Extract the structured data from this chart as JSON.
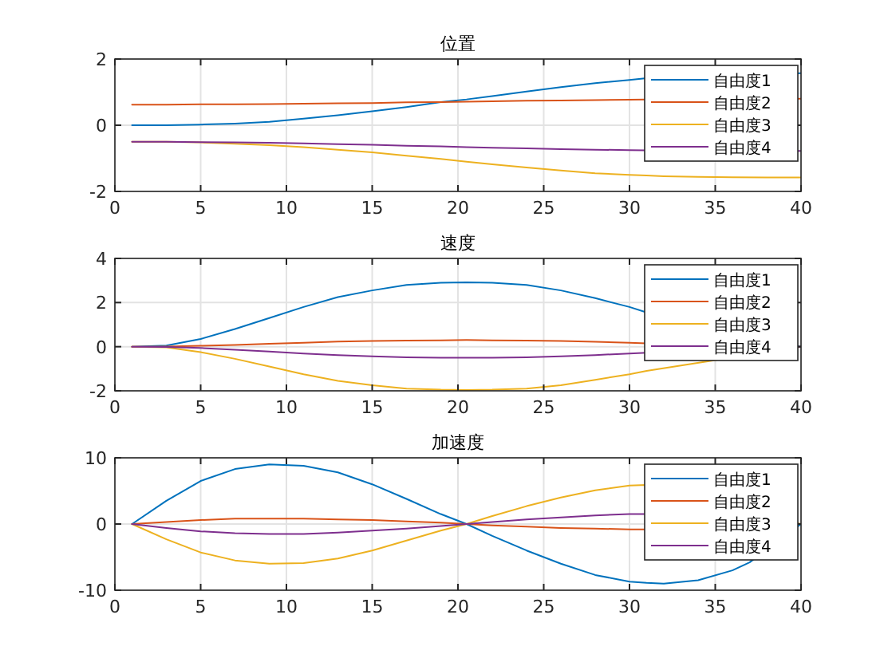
{
  "chart_data": [
    {
      "type": "line",
      "title": "位置",
      "x": [
        1,
        3,
        5,
        7,
        9,
        11,
        13,
        15,
        17,
        19,
        20.5,
        22,
        24,
        26,
        28,
        30,
        31,
        40
      ],
      "xlim": [
        0,
        40
      ],
      "xticks": [
        0,
        5,
        10,
        15,
        20,
        25,
        30,
        35,
        40
      ],
      "ylim": [
        -2,
        2
      ],
      "yticks": [
        -2,
        0,
        2
      ],
      "grid": true,
      "legend": "top right",
      "series": [
        {
          "name": "自由度1",
          "color": "#0072bd",
          "values": [
            0,
            0,
            0.02,
            0.05,
            0.1,
            0.2,
            0.3,
            0.42,
            0.55,
            0.7,
            0.78,
            0.88,
            1.02,
            1.15,
            1.27,
            1.37,
            1.42,
            1.57
          ]
        },
        {
          "name": "自由度2",
          "color": "#d95319",
          "values": [
            0.62,
            0.62,
            0.63,
            0.63,
            0.64,
            0.65,
            0.66,
            0.67,
            0.69,
            0.7,
            0.71,
            0.72,
            0.74,
            0.75,
            0.76,
            0.77,
            0.78,
            0.8
          ]
        },
        {
          "name": "自由度3",
          "color": "#edb120",
          "x": [
            1,
            3,
            5,
            7,
            9,
            11,
            13,
            15,
            17,
            19,
            20.5,
            22,
            24,
            26,
            28,
            30,
            31,
            32,
            34,
            36,
            38,
            40
          ],
          "values": [
            -0.5,
            -0.5,
            -0.52,
            -0.56,
            -0.6,
            -0.66,
            -0.74,
            -0.82,
            -0.92,
            -1.02,
            -1.1,
            -1.18,
            -1.28,
            -1.37,
            -1.45,
            -1.5,
            -1.52,
            -1.54,
            -1.56,
            -1.57,
            -1.58,
            -1.58
          ]
        },
        {
          "name": "自由度4",
          "color": "#7e2f8e",
          "values": [
            -0.5,
            -0.5,
            -0.51,
            -0.52,
            -0.53,
            -0.55,
            -0.57,
            -0.59,
            -0.62,
            -0.64,
            -0.66,
            -0.68,
            -0.7,
            -0.72,
            -0.74,
            -0.75,
            -0.76,
            -0.78
          ]
        }
      ]
    },
    {
      "type": "line",
      "title": "速度",
      "x": [
        1,
        3,
        5,
        7,
        9,
        11,
        13,
        15,
        17,
        19,
        20.5,
        22,
        24,
        26,
        28,
        30,
        31,
        40
      ],
      "xlim": [
        0,
        40
      ],
      "xticks": [
        0,
        5,
        10,
        15,
        20,
        25,
        30,
        35,
        40
      ],
      "ylim": [
        -2,
        4
      ],
      "yticks": [
        -2,
        0,
        2,
        4
      ],
      "grid": true,
      "legend": "top right",
      "series": [
        {
          "name": "自由度1",
          "color": "#0072bd",
          "values": [
            0,
            0.05,
            0.35,
            0.8,
            1.3,
            1.8,
            2.25,
            2.55,
            2.8,
            2.9,
            2.92,
            2.9,
            2.8,
            2.55,
            2.2,
            1.8,
            1.55,
            0
          ]
        },
        {
          "name": "自由度2",
          "color": "#d95319",
          "values": [
            0,
            0.01,
            0.04,
            0.08,
            0.13,
            0.18,
            0.23,
            0.26,
            0.28,
            0.29,
            0.3,
            0.29,
            0.28,
            0.26,
            0.22,
            0.18,
            0.15,
            0
          ]
        },
        {
          "name": "自由度3",
          "color": "#edb120",
          "values": [
            0,
            -0.03,
            -0.25,
            -0.55,
            -0.9,
            -1.25,
            -1.55,
            -1.75,
            -1.9,
            -1.95,
            -1.96,
            -1.95,
            -1.9,
            -1.75,
            -1.5,
            -1.25,
            -1.1,
            0
          ]
        },
        {
          "name": "自由度4",
          "color": "#7e2f8e",
          "values": [
            0,
            -0.01,
            -0.06,
            -0.14,
            -0.22,
            -0.31,
            -0.38,
            -0.44,
            -0.48,
            -0.5,
            -0.5,
            -0.5,
            -0.48,
            -0.44,
            -0.38,
            -0.31,
            -0.27,
            0
          ]
        }
      ]
    },
    {
      "type": "line",
      "title": "加速度",
      "x": [
        1,
        3,
        5,
        7,
        9,
        11,
        13,
        15,
        17,
        19,
        20.5,
        22,
        24,
        26,
        28,
        30,
        31,
        40
      ],
      "xlim": [
        0,
        40
      ],
      "xticks": [
        0,
        5,
        10,
        15,
        20,
        25,
        30,
        35,
        40
      ],
      "ylim": [
        -10,
        10
      ],
      "yticks": [
        -10,
        0,
        10
      ],
      "grid": true,
      "legend": "top right",
      "series": [
        {
          "name": "自由度1",
          "color": "#0072bd",
          "x": [
            1,
            3,
            5,
            7,
            9,
            11,
            13,
            15,
            17,
            19,
            20.5,
            22,
            24,
            26,
            28,
            30,
            31,
            32,
            34,
            36,
            37,
            40
          ],
          "values": [
            0,
            3.5,
            6.5,
            8.3,
            9,
            8.8,
            7.8,
            6,
            3.8,
            1.5,
            0,
            -1.8,
            -4,
            -6,
            -7.7,
            -8.7,
            -8.9,
            -9,
            -8.5,
            -7,
            -5.8,
            0
          ]
        },
        {
          "name": "自由度2",
          "color": "#d95319",
          "values": [
            0,
            0.3,
            0.6,
            0.8,
            0.8,
            0.8,
            0.7,
            0.6,
            0.4,
            0.2,
            0,
            -0.2,
            -0.4,
            -0.6,
            -0.7,
            -0.8,
            -0.8,
            0
          ]
        },
        {
          "name": "自由度3",
          "color": "#edb120",
          "values": [
            0,
            -2.3,
            -4.3,
            -5.5,
            -6,
            -5.9,
            -5.2,
            -4,
            -2.5,
            -1,
            0,
            1.2,
            2.7,
            4,
            5.1,
            5.8,
            5.9,
            0
          ]
        },
        {
          "name": "自由度4",
          "color": "#7e2f8e",
          "values": [
            0,
            -0.6,
            -1.1,
            -1.4,
            -1.5,
            -1.5,
            -1.3,
            -1,
            -0.7,
            -0.3,
            0,
            0.3,
            0.7,
            1,
            1.3,
            1.5,
            1.5,
            0
          ]
        }
      ]
    }
  ]
}
